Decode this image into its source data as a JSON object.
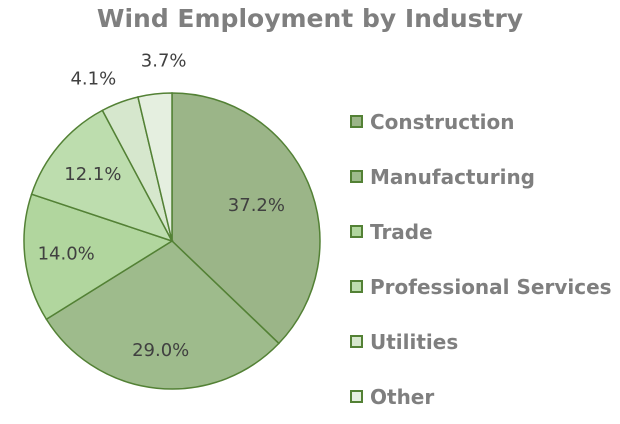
{
  "chart_data": {
    "type": "pie",
    "title": "Wind Employment by Industry",
    "categories": [
      "Construction",
      "Manufacturing",
      "Trade",
      "Professional Services",
      "Utilities",
      "Other"
    ],
    "values": [
      37.2,
      29.0,
      14.0,
      12.1,
      4.1,
      3.7
    ],
    "data_labels": [
      "37.2%",
      "29.0%",
      "14.0%",
      "12.1%",
      "4.1%",
      "3.7%"
    ],
    "colors": [
      "#9bb588",
      "#9ebb8c",
      "#b1d69e",
      "#bdddae",
      "#d6e7cd",
      "#e5efe0"
    ],
    "edge_color": "#538135",
    "legend_position": "right"
  }
}
